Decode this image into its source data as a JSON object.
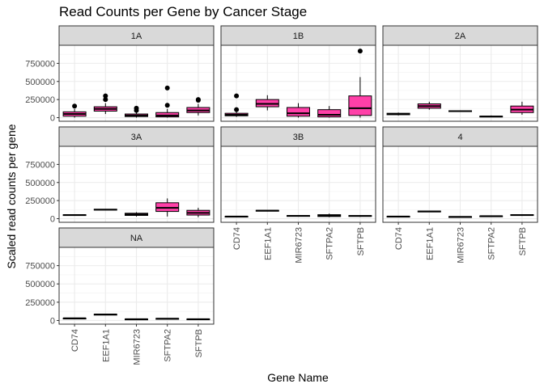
{
  "chart_data": {
    "type": "boxplot",
    "title": "Read Counts per Gene by Cancer Stage",
    "xlabel": "Gene Name",
    "ylabel": "Scaled read counts per gene",
    "ylim": [
      -50000,
      1000000
    ],
    "yticks": [
      0,
      250000,
      500000,
      750000
    ],
    "ytick_labels": [
      "0",
      "250000",
      "500000",
      "750000"
    ],
    "categories": [
      "CD74",
      "EEF1A1",
      "MIR6723",
      "SFTPA2",
      "SFTPB"
    ],
    "box_fill": "#ff40a8",
    "strip_fill": "#d9d9d9",
    "grid": true,
    "facets": [
      {
        "label": "1A",
        "boxes": [
          {
            "gene": "CD74",
            "min": 0,
            "q1": 20000,
            "median": 50000,
            "q3": 80000,
            "max": 120000,
            "outliers": [
              160000
            ]
          },
          {
            "gene": "EEF1A1",
            "min": 50000,
            "q1": 90000,
            "median": 120000,
            "q3": 150000,
            "max": 200000,
            "outliers": [
              250000,
              300000
            ]
          },
          {
            "gene": "MIR6723",
            "min": 0,
            "q1": 15000,
            "median": 30000,
            "q3": 50000,
            "max": 80000,
            "outliers": [
              100000,
              130000
            ]
          },
          {
            "gene": "SFTPA2",
            "min": 0,
            "q1": 10000,
            "median": 30000,
            "q3": 70000,
            "max": 120000,
            "outliers": [
              170000,
              410000
            ]
          },
          {
            "gene": "SFTPB",
            "min": 30000,
            "q1": 70000,
            "median": 100000,
            "q3": 140000,
            "max": 190000,
            "outliers": [
              240000,
              250000
            ]
          }
        ]
      },
      {
        "label": "1B",
        "boxes": [
          {
            "gene": "CD74",
            "min": 10000,
            "q1": 25000,
            "median": 40000,
            "q3": 60000,
            "max": 80000,
            "outliers": [
              110000,
              300000
            ]
          },
          {
            "gene": "EEF1A1",
            "min": 100000,
            "q1": 150000,
            "median": 190000,
            "q3": 250000,
            "max": 310000,
            "outliers": []
          },
          {
            "gene": "MIR6723",
            "min": 0,
            "q1": 20000,
            "median": 60000,
            "q3": 140000,
            "max": 200000,
            "outliers": []
          },
          {
            "gene": "SFTPA2",
            "min": 0,
            "q1": 10000,
            "median": 40000,
            "q3": 110000,
            "max": 160000,
            "outliers": []
          },
          {
            "gene": "SFTPB",
            "min": 0,
            "q1": 30000,
            "median": 130000,
            "q3": 300000,
            "max": 560000,
            "outliers": [
              920000
            ]
          }
        ]
      },
      {
        "label": "2A",
        "boxes": [
          {
            "gene": "CD74",
            "min": 30000,
            "q1": 40000,
            "median": 50000,
            "q3": 60000,
            "max": 70000,
            "outliers": []
          },
          {
            "gene": "EEF1A1",
            "min": 110000,
            "q1": 130000,
            "median": 160000,
            "q3": 190000,
            "max": 220000,
            "outliers": []
          },
          {
            "gene": "MIR6723",
            "min": 80000,
            "q1": 85000,
            "median": 90000,
            "q3": 95000,
            "max": 100000,
            "outliers": []
          },
          {
            "gene": "SFTPA2",
            "min": 5000,
            "q1": 10000,
            "median": 15000,
            "q3": 20000,
            "max": 30000,
            "outliers": []
          },
          {
            "gene": "SFTPB",
            "min": 40000,
            "q1": 70000,
            "median": 110000,
            "q3": 160000,
            "max": 220000,
            "outliers": []
          }
        ]
      },
      {
        "label": "3A",
        "boxes": [
          {
            "gene": "CD74",
            "min": 40000,
            "q1": 45000,
            "median": 50000,
            "q3": 55000,
            "max": 60000,
            "outliers": []
          },
          {
            "gene": "EEF1A1",
            "min": 115000,
            "q1": 120000,
            "median": 125000,
            "q3": 130000,
            "max": 135000,
            "outliers": []
          },
          {
            "gene": "MIR6723",
            "min": 30000,
            "q1": 45000,
            "median": 60000,
            "q3": 75000,
            "max": 90000,
            "outliers": []
          },
          {
            "gene": "SFTPA2",
            "min": 30000,
            "q1": 100000,
            "median": 150000,
            "q3": 220000,
            "max": 280000,
            "outliers": []
          },
          {
            "gene": "SFTPB",
            "min": 20000,
            "q1": 50000,
            "median": 80000,
            "q3": 115000,
            "max": 150000,
            "outliers": []
          }
        ]
      },
      {
        "label": "3B",
        "boxes": [
          {
            "gene": "CD74",
            "min": 25000,
            "q1": 28000,
            "median": 30000,
            "q3": 33000,
            "max": 36000,
            "outliers": []
          },
          {
            "gene": "EEF1A1",
            "min": 100000,
            "q1": 105000,
            "median": 110000,
            "q3": 115000,
            "max": 120000,
            "outliers": []
          },
          {
            "gene": "MIR6723",
            "min": 35000,
            "q1": 38000,
            "median": 40000,
            "q3": 43000,
            "max": 46000,
            "outliers": []
          },
          {
            "gene": "SFTPA2",
            "min": 20000,
            "q1": 30000,
            "median": 40000,
            "q3": 55000,
            "max": 70000,
            "outliers": []
          },
          {
            "gene": "SFTPB",
            "min": 25000,
            "q1": 32000,
            "median": 38000,
            "q3": 43000,
            "max": 48000,
            "outliers": []
          }
        ]
      },
      {
        "label": "4",
        "boxes": [
          {
            "gene": "CD74",
            "min": 25000,
            "q1": 28000,
            "median": 30000,
            "q3": 33000,
            "max": 36000,
            "outliers": []
          },
          {
            "gene": "EEF1A1",
            "min": 90000,
            "q1": 95000,
            "median": 100000,
            "q3": 105000,
            "max": 110000,
            "outliers": []
          },
          {
            "gene": "MIR6723",
            "min": 18000,
            "q1": 22000,
            "median": 25000,
            "q3": 28000,
            "max": 32000,
            "outliers": []
          },
          {
            "gene": "SFTPA2",
            "min": 28000,
            "q1": 32000,
            "median": 35000,
            "q3": 38000,
            "max": 42000,
            "outliers": []
          },
          {
            "gene": "SFTPB",
            "min": 38000,
            "q1": 44000,
            "median": 50000,
            "q3": 56000,
            "max": 62000,
            "outliers": []
          }
        ]
      },
      {
        "label": "NA",
        "boxes": [
          {
            "gene": "CD74",
            "min": 25000,
            "q1": 28000,
            "median": 30000,
            "q3": 32000,
            "max": 35000,
            "outliers": []
          },
          {
            "gene": "EEF1A1",
            "min": 75000,
            "q1": 80000,
            "median": 82000,
            "q3": 85000,
            "max": 88000,
            "outliers": []
          },
          {
            "gene": "MIR6723",
            "min": 12000,
            "q1": 15000,
            "median": 18000,
            "q3": 20000,
            "max": 23000,
            "outliers": []
          },
          {
            "gene": "SFTPA2",
            "min": 18000,
            "q1": 22000,
            "median": 25000,
            "q3": 28000,
            "max": 32000,
            "outliers": []
          },
          {
            "gene": "SFTPB",
            "min": 12000,
            "q1": 15000,
            "median": 18000,
            "q3": 21000,
            "max": 24000,
            "outliers": []
          }
        ]
      }
    ]
  }
}
